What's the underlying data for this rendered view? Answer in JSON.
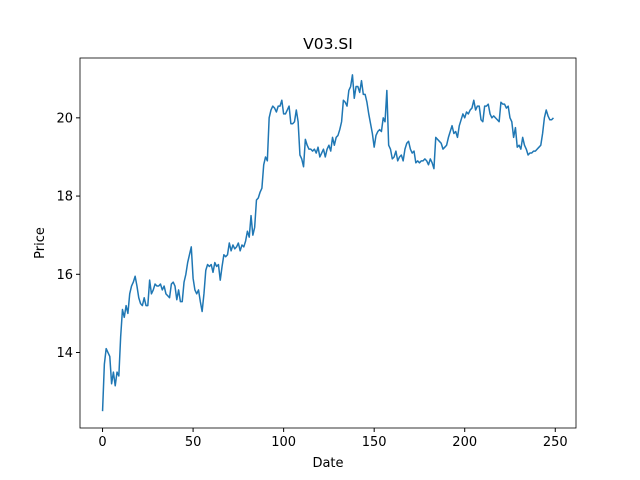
{
  "chart_data": {
    "type": "line",
    "title": "V03.SI",
    "x_label": "Date",
    "y_label": "Price",
    "x": [
      0,
      1,
      2,
      3,
      4,
      5,
      6,
      7,
      8,
      9,
      10,
      11,
      12,
      13,
      14,
      15,
      16,
      17,
      18,
      19,
      20,
      21,
      22,
      23,
      24,
      25,
      26,
      27,
      28,
      29,
      30,
      31,
      32,
      33,
      34,
      35,
      36,
      37,
      38,
      39,
      40,
      41,
      42,
      43,
      44,
      45,
      46,
      47,
      48,
      49,
      50,
      51,
      52,
      53,
      54,
      55,
      56,
      57,
      58,
      59,
      60,
      61,
      62,
      63,
      64,
      65,
      66,
      67,
      68,
      69,
      70,
      71,
      72,
      73,
      74,
      75,
      76,
      77,
      78,
      79,
      80,
      81,
      82,
      83,
      84,
      85,
      86,
      87,
      88,
      89,
      90,
      91,
      92,
      93,
      94,
      95,
      96,
      97,
      98,
      99,
      100,
      101,
      102,
      103,
      104,
      105,
      106,
      107,
      108,
      109,
      110,
      111,
      112,
      113,
      114,
      115,
      116,
      117,
      118,
      119,
      120,
      121,
      122,
      123,
      124,
      125,
      126,
      127,
      128,
      129,
      130,
      131,
      132,
      133,
      134,
      135,
      136,
      137,
      138,
      139,
      140,
      141,
      142,
      143,
      144,
      145,
      146,
      147,
      148,
      149,
      150,
      151,
      152,
      153,
      154,
      155,
      156,
      157,
      158,
      159,
      160,
      161,
      162,
      163,
      164,
      165,
      166,
      167,
      168,
      169,
      170,
      171,
      172,
      173,
      174,
      175,
      176,
      177,
      178,
      179,
      180,
      181,
      182,
      183,
      184,
      185,
      186,
      187,
      188,
      189,
      190,
      191,
      192,
      193,
      194,
      195,
      196,
      197,
      198,
      199,
      200,
      201,
      202,
      203,
      204,
      205,
      206,
      207,
      208,
      209,
      210,
      211,
      212,
      213,
      214,
      215,
      216,
      217,
      218,
      219,
      220,
      221,
      222,
      223,
      224,
      225,
      226,
      227,
      228,
      229,
      230,
      231,
      232,
      233,
      234,
      235,
      236,
      237,
      238,
      239,
      240,
      241,
      242,
      243,
      244,
      245,
      246,
      247,
      248,
      249
    ],
    "series": [
      {
        "name": "V03.SI",
        "color": "#1f77b4",
        "values": [
          12.5,
          13.7,
          14.1,
          14.0,
          13.9,
          13.2,
          13.5,
          13.15,
          13.5,
          13.4,
          14.4,
          15.1,
          14.9,
          15.2,
          15.0,
          15.5,
          15.7,
          15.8,
          15.95,
          15.7,
          15.4,
          15.25,
          15.2,
          15.4,
          15.2,
          15.2,
          15.85,
          15.5,
          15.6,
          15.75,
          15.7,
          15.7,
          15.75,
          15.6,
          15.7,
          15.5,
          15.45,
          15.4,
          15.75,
          15.8,
          15.7,
          15.35,
          15.6,
          15.3,
          15.3,
          15.8,
          16.0,
          16.3,
          16.5,
          16.7,
          15.9,
          15.6,
          15.5,
          15.6,
          15.3,
          15.05,
          15.5,
          16.1,
          16.25,
          16.2,
          16.25,
          16.05,
          16.3,
          16.2,
          16.25,
          15.85,
          16.2,
          16.5,
          16.45,
          16.5,
          16.8,
          16.6,
          16.75,
          16.65,
          16.7,
          16.8,
          16.6,
          16.75,
          16.7,
          16.85,
          17.1,
          16.95,
          17.5,
          17.0,
          17.2,
          17.9,
          17.95,
          18.1,
          18.2,
          18.8,
          19.0,
          18.9,
          20.0,
          20.2,
          20.3,
          20.25,
          20.15,
          20.3,
          20.3,
          20.45,
          20.1,
          20.1,
          20.2,
          20.3,
          19.85,
          19.85,
          19.9,
          20.2,
          19.9,
          19.05,
          18.95,
          18.75,
          19.45,
          19.3,
          19.2,
          19.2,
          19.15,
          19.2,
          19.1,
          19.25,
          19.0,
          19.1,
          19.2,
          19.0,
          19.2,
          19.3,
          19.15,
          19.5,
          19.3,
          19.5,
          19.55,
          19.7,
          19.9,
          20.45,
          20.4,
          20.3,
          20.7,
          20.8,
          21.1,
          20.5,
          20.8,
          20.8,
          20.65,
          20.95,
          20.6,
          20.6,
          20.4,
          20.1,
          19.85,
          19.6,
          19.25,
          19.55,
          19.65,
          19.7,
          19.65,
          20.0,
          19.9,
          20.7,
          19.3,
          19.2,
          18.95,
          19.0,
          19.15,
          18.9,
          19.0,
          19.05,
          18.9,
          19.2,
          19.35,
          19.4,
          19.2,
          19.1,
          19.15,
          18.85,
          18.9,
          18.85,
          18.9,
          18.9,
          18.95,
          18.9,
          18.8,
          18.95,
          18.85,
          18.7,
          19.5,
          19.45,
          19.4,
          19.35,
          19.2,
          19.25,
          19.3,
          19.5,
          19.65,
          19.8,
          19.6,
          19.65,
          19.5,
          19.8,
          19.95,
          20.1,
          20.0,
          20.15,
          20.1,
          20.2,
          20.25,
          20.45,
          20.2,
          20.3,
          20.3,
          19.95,
          19.9,
          20.3,
          20.3,
          20.35,
          20.1,
          20.0,
          20.05,
          20.0,
          19.95,
          19.9,
          20.4,
          20.35,
          20.35,
          20.25,
          20.3,
          20.0,
          19.9,
          19.5,
          19.75,
          19.25,
          19.3,
          19.2,
          19.5,
          19.3,
          19.2,
          19.05,
          19.1,
          19.1,
          19.15,
          19.15,
          19.2,
          19.25,
          19.3,
          19.6,
          20.0,
          20.2,
          20.05,
          19.95,
          19.95,
          20.0
        ]
      }
    ],
    "xlim": [
      -12.45,
      261.45
    ],
    "ylim": [
      12.07,
      21.53
    ],
    "xticks": [
      0,
      50,
      100,
      150,
      200,
      250
    ],
    "yticks": [
      14,
      16,
      18,
      20
    ]
  }
}
